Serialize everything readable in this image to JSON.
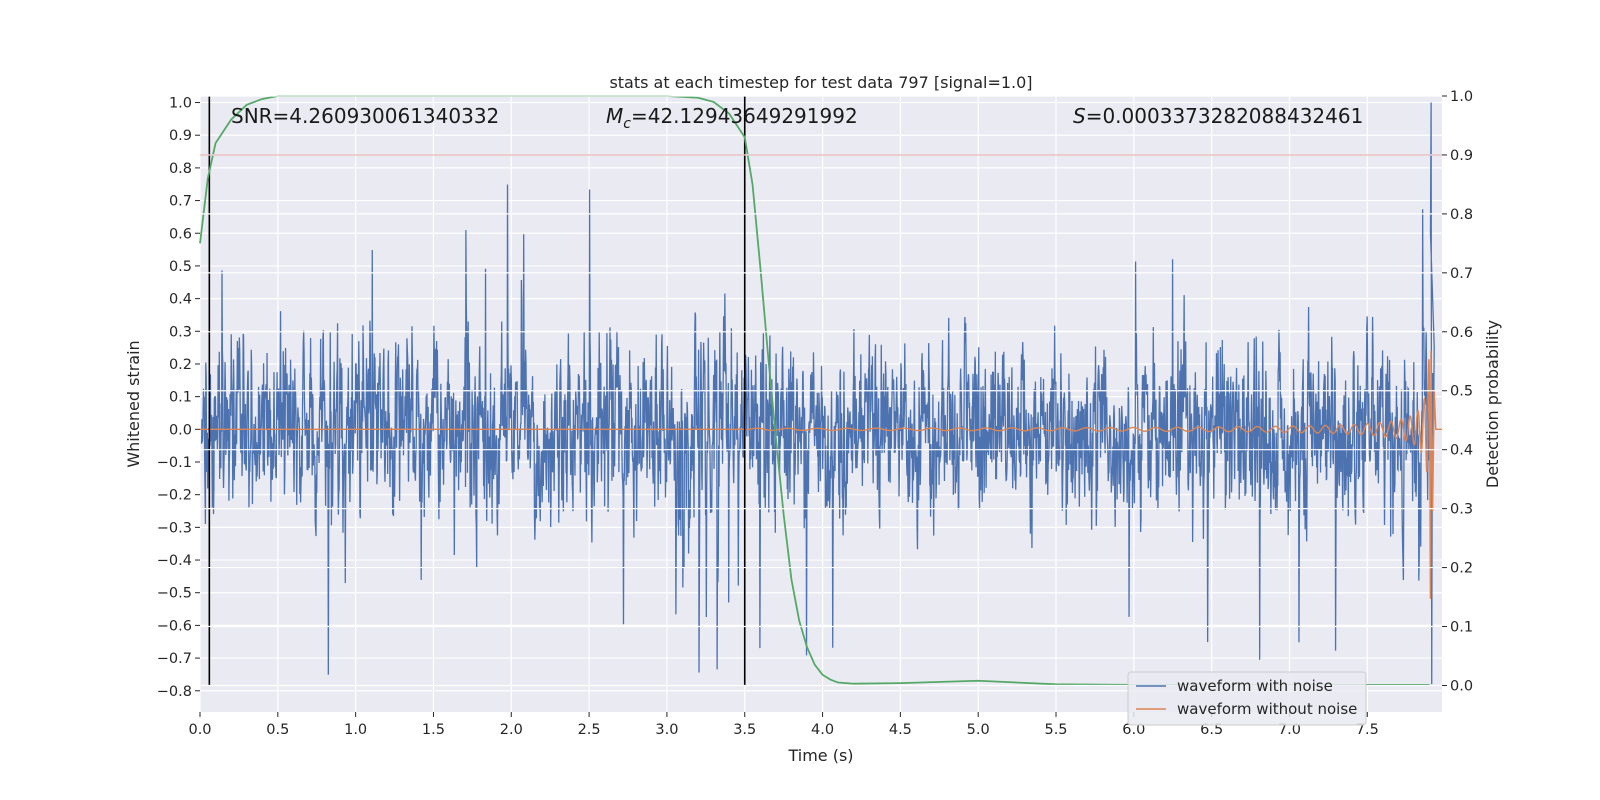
{
  "chart_data": {
    "type": "line",
    "title": "stats at each timestep for test data 797 [signal=1.0]",
    "xlabel": "Time (s)",
    "ylabel": "Whitened strain",
    "y2label": "Detection probability",
    "xlim": [
      0.0,
      7.98
    ],
    "ylim": [
      -0.865,
      1.02
    ],
    "y2lim": [
      -0.045,
      1.0
    ],
    "x_ticks": [
      0.0,
      0.5,
      1.0,
      1.5,
      2.0,
      2.5,
      3.0,
      3.5,
      4.0,
      4.5,
      5.0,
      5.5,
      6.0,
      6.5,
      7.0,
      7.5
    ],
    "x_tick_labels": [
      "0.0",
      "0.5",
      "1.0",
      "1.5",
      "2.0",
      "2.5",
      "3.0",
      "3.5",
      "4.0",
      "4.5",
      "5.0",
      "5.5",
      "6.0",
      "6.5",
      "7.0",
      "7.5"
    ],
    "y_ticks": [
      1.0,
      0.9,
      0.8,
      0.7,
      0.6,
      0.5,
      0.4,
      0.3,
      0.2,
      0.1,
      0.0,
      -0.1,
      -0.2,
      -0.3,
      -0.4,
      -0.5,
      -0.6,
      -0.7,
      -0.8
    ],
    "y_tick_labels": [
      "1.0",
      "0.9",
      "0.8",
      "0.7",
      "0.6",
      "0.5",
      "0.4",
      "0.3",
      "0.2",
      "0.1",
      "0.0",
      "−0.1",
      "−0.2",
      "−0.3",
      "−0.4",
      "−0.5",
      "−0.6",
      "−0.7",
      "−0.8"
    ],
    "y2_ticks": [
      1.0,
      0.9,
      0.8,
      0.7,
      0.6,
      0.5,
      0.4,
      0.3,
      0.2,
      0.1,
      0.0
    ],
    "y2_tick_labels": [
      "1.0",
      "0.9",
      "0.8",
      "0.7",
      "0.6",
      "0.5",
      "0.4",
      "0.3",
      "0.2",
      "0.1",
      "0.0"
    ],
    "grid": true,
    "legend_position": "lower-right",
    "annotations": {
      "snr": "SNR=4.260930061340332",
      "mc_symbol": "M",
      "mc_subscript": "c",
      "mc_value": "=42.12943649291992",
      "s_symbol": "S",
      "s_value": "=0.0003373282088432461"
    },
    "threshold": {
      "value": 0.9,
      "axis": "right",
      "color": "#c44e52"
    },
    "vertical_markers": [
      0.06,
      3.5
    ],
    "series": [
      {
        "name": "waveform with noise",
        "axis": "left",
        "color": "#4c72b0",
        "description_type": "noise",
        "envelope": {
          "typical_amplitude": 0.45,
          "spike_max": 0.77,
          "spike_min": -0.77,
          "final_peak_time": 7.91,
          "final_peak_value": 1.0,
          "final_trough_value": -0.78
        }
      },
      {
        "name": "waveform without noise",
        "axis": "left",
        "color": "#dd8452",
        "chirp": {
          "start_time": 3.5,
          "merger_time": 7.91,
          "end_time": 7.98,
          "amplitude_at_6s": 0.004,
          "amplitude_at_7s": 0.01,
          "amplitude_at_7_5s": 0.035,
          "peak_amplitude": 0.62
        }
      },
      {
        "name": "detection probability",
        "axis": "right",
        "color": "#55a868",
        "x": [
          0.0,
          0.05,
          0.1,
          0.2,
          0.3,
          0.4,
          0.5,
          1.0,
          2.0,
          3.0,
          3.2,
          3.3,
          3.4,
          3.5,
          3.55,
          3.6,
          3.65,
          3.7,
          3.75,
          3.8,
          3.85,
          3.9,
          3.95,
          4.0,
          4.05,
          4.1,
          4.2,
          4.5,
          5.0,
          5.5,
          6.0,
          7.0,
          7.9
        ],
        "y": [
          0.75,
          0.86,
          0.92,
          0.96,
          0.985,
          0.995,
          1.0,
          1.0,
          1.0,
          1.0,
          0.997,
          0.99,
          0.97,
          0.93,
          0.85,
          0.71,
          0.56,
          0.42,
          0.29,
          0.18,
          0.11,
          0.065,
          0.035,
          0.018,
          0.01,
          0.005,
          0.003,
          0.004,
          0.008,
          0.002,
          0.001,
          0.001,
          0.001
        ]
      }
    ]
  }
}
